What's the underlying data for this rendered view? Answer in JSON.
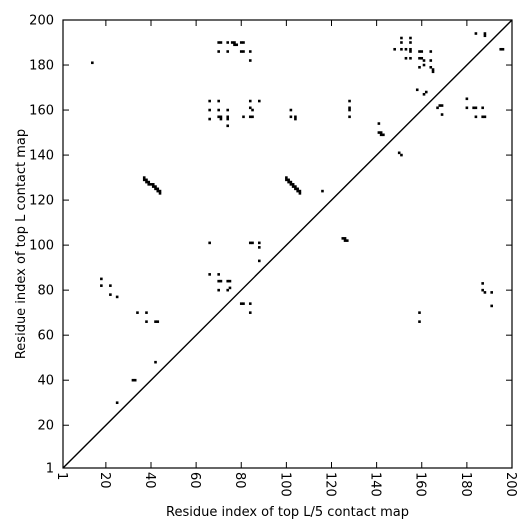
{
  "chart_data": {
    "type": "scatter",
    "title": "",
    "xlabel": "Residue index of top L/5 contact map",
    "ylabel": "Residue index of top L contact map",
    "xlim": [
      1,
      200
    ],
    "ylim": [
      1,
      200
    ],
    "xticks": [
      1,
      20,
      40,
      60,
      80,
      100,
      120,
      140,
      160,
      180,
      200
    ],
    "yticks": [
      1,
      20,
      40,
      60,
      80,
      100,
      120,
      140,
      160,
      180,
      200
    ],
    "xtick_labels": [
      "1",
      "20",
      "40",
      "60",
      "80",
      "100",
      "120",
      "140",
      "160",
      "180",
      "200"
    ],
    "ytick_labels": [
      "1",
      "20",
      "40",
      "60",
      "80",
      "100",
      "120",
      "140",
      "160",
      "180",
      "200"
    ],
    "diagonal": [
      [
        1,
        1
      ],
      [
        200,
        200
      ]
    ],
    "marker": "square",
    "marker_color": "#000000",
    "grid": false,
    "legend": "none",
    "series": [
      {
        "points": [
          [
            37,
            129
          ],
          [
            37,
            130
          ],
          [
            38,
            128
          ],
          [
            38,
            129
          ],
          [
            39,
            127
          ],
          [
            39,
            128
          ],
          [
            40,
            127
          ],
          [
            41,
            126
          ],
          [
            41,
            127
          ],
          [
            42,
            125
          ],
          [
            42,
            126
          ],
          [
            43,
            124
          ],
          [
            43,
            125
          ],
          [
            44,
            123
          ],
          [
            44,
            124
          ],
          [
            100,
            129
          ],
          [
            100,
            130
          ],
          [
            101,
            128
          ],
          [
            101,
            129
          ],
          [
            102,
            127
          ],
          [
            102,
            128
          ],
          [
            103,
            126
          ],
          [
            103,
            127
          ],
          [
            104,
            125
          ],
          [
            104,
            126
          ],
          [
            105,
            124
          ],
          [
            105,
            125
          ],
          [
            106,
            123
          ],
          [
            106,
            124
          ],
          [
            116,
            124
          ],
          [
            125,
            103
          ],
          [
            126,
            102
          ],
          [
            126,
            103
          ],
          [
            127,
            102
          ],
          [
            141,
            150
          ],
          [
            142,
            149
          ],
          [
            142,
            150
          ],
          [
            143,
            149
          ],
          [
            141,
            154
          ],
          [
            150,
            141
          ],
          [
            151,
            140
          ],
          [
            70,
            190
          ],
          [
            71,
            190
          ],
          [
            76,
            190
          ],
          [
            77,
            190
          ],
          [
            77,
            189
          ],
          [
            78,
            189
          ],
          [
            80,
            190
          ],
          [
            81,
            190
          ],
          [
            80,
            186
          ],
          [
            81,
            186
          ],
          [
            70,
            186
          ],
          [
            74,
            186
          ],
          [
            74,
            190
          ],
          [
            84,
            186
          ],
          [
            84,
            182
          ],
          [
            66,
            164
          ],
          [
            66,
            160
          ],
          [
            66,
            156
          ],
          [
            70,
            164
          ],
          [
            70,
            160
          ],
          [
            70,
            157
          ],
          [
            71,
            157
          ],
          [
            71,
            156
          ],
          [
            74,
            160
          ],
          [
            74,
            157
          ],
          [
            74,
            156
          ],
          [
            74,
            153
          ],
          [
            81,
            157
          ],
          [
            84,
            161
          ],
          [
            85,
            160
          ],
          [
            84,
            157
          ],
          [
            85,
            157
          ],
          [
            84,
            164
          ],
          [
            88,
            164
          ],
          [
            102,
            160
          ],
          [
            102,
            157
          ],
          [
            104,
            157
          ],
          [
            104,
            156
          ],
          [
            128,
            164
          ],
          [
            128,
            161
          ],
          [
            128,
            160
          ],
          [
            128,
            157
          ],
          [
            66,
            101
          ],
          [
            84,
            101
          ],
          [
            85,
            101
          ],
          [
            88,
            101
          ],
          [
            88,
            99
          ],
          [
            88,
            93
          ],
          [
            66,
            87
          ],
          [
            70,
            87
          ],
          [
            70,
            84
          ],
          [
            71,
            84
          ],
          [
            74,
            84
          ],
          [
            75,
            84
          ],
          [
            70,
            80
          ],
          [
            74,
            80
          ],
          [
            75,
            81
          ],
          [
            80,
            74
          ],
          [
            81,
            74
          ],
          [
            84,
            74
          ],
          [
            84,
            70
          ],
          [
            18,
            85
          ],
          [
            18,
            82
          ],
          [
            22,
            82
          ],
          [
            22,
            78
          ],
          [
            25,
            77
          ],
          [
            34,
            70
          ],
          [
            38,
            70
          ],
          [
            38,
            66
          ],
          [
            42,
            66
          ],
          [
            43,
            66
          ],
          [
            42,
            48
          ],
          [
            32,
            40
          ],
          [
            33,
            40
          ],
          [
            25,
            30
          ],
          [
            14,
            181
          ],
          [
            151,
            192
          ],
          [
            155,
            192
          ],
          [
            151,
            190
          ],
          [
            155,
            190
          ],
          [
            151,
            187
          ],
          [
            153,
            187
          ],
          [
            155,
            187
          ],
          [
            155,
            186
          ],
          [
            159,
            186
          ],
          [
            160,
            186
          ],
          [
            164,
            186
          ],
          [
            153,
            183
          ],
          [
            155,
            183
          ],
          [
            159,
            183
          ],
          [
            160,
            183
          ],
          [
            161,
            182
          ],
          [
            164,
            182
          ],
          [
            159,
            179
          ],
          [
            161,
            180
          ],
          [
            164,
            179
          ],
          [
            165,
            178
          ],
          [
            165,
            177
          ],
          [
            158,
            169
          ],
          [
            162,
            168
          ],
          [
            161,
            167
          ],
          [
            168,
            162
          ],
          [
            169,
            162
          ],
          [
            167,
            161
          ],
          [
            169,
            158
          ],
          [
            180,
            165
          ],
          [
            180,
            161
          ],
          [
            183,
            161
          ],
          [
            184,
            161
          ],
          [
            184,
            157
          ],
          [
            187,
            157
          ],
          [
            188,
            157
          ],
          [
            187,
            161
          ],
          [
            184,
            194
          ],
          [
            188,
            194
          ],
          [
            188,
            193
          ],
          [
            195,
            187
          ],
          [
            196,
            187
          ],
          [
            148,
            187
          ],
          [
            159,
            70
          ],
          [
            159,
            66
          ],
          [
            187,
            83
          ],
          [
            187,
            80
          ],
          [
            188,
            79
          ],
          [
            191,
            79
          ],
          [
            191,
            73
          ]
        ]
      }
    ]
  }
}
